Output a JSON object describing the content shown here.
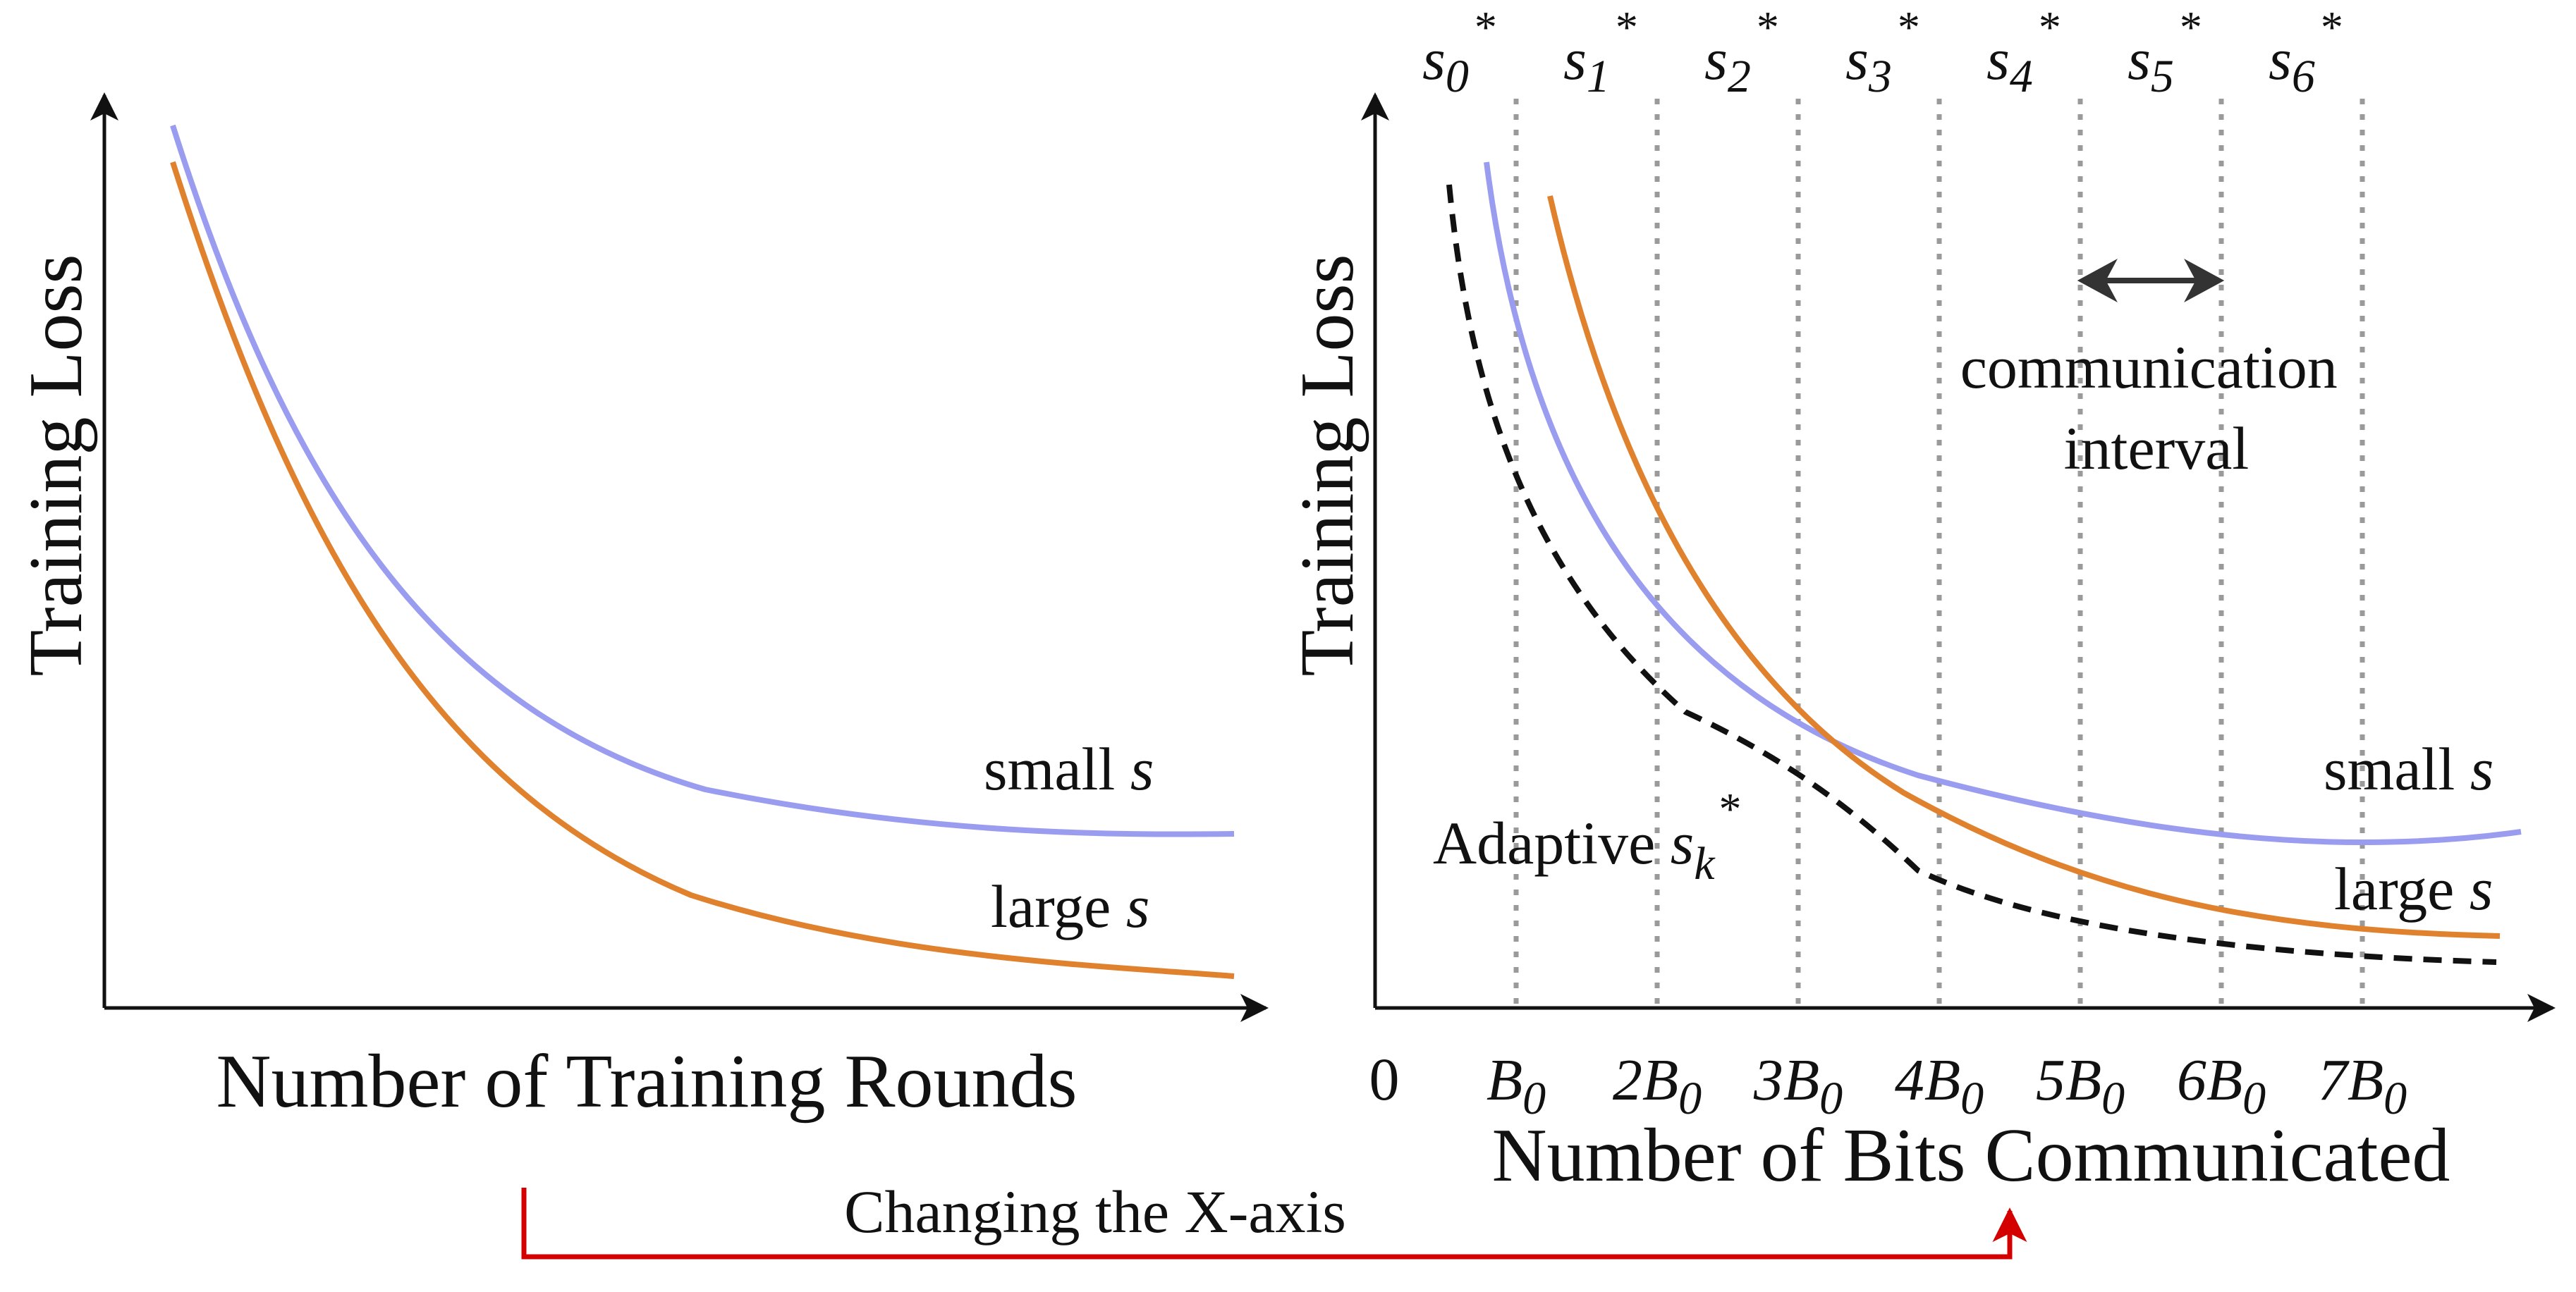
{
  "colors": {
    "small_s": "#9a9cf0",
    "large_s": "#e0812e",
    "adaptive": "#111111",
    "gridline": "#9a9a9a",
    "arrow_red": "#d40000",
    "interval_arrow": "#333333"
  },
  "left_panel": {
    "ylabel": "Training Loss",
    "xlabel": "Number of Training Rounds",
    "small_label_text": "small ",
    "small_label_var": "s",
    "large_label_text": "large ",
    "large_label_var": "s"
  },
  "right_panel": {
    "ylabel": "Training Loss",
    "xlabel": "Number of Bits Communicated",
    "origin_label": "0",
    "ticks": [
      {
        "coef": "",
        "base": "B",
        "sub": "0"
      },
      {
        "coef": "2",
        "base": "B",
        "sub": "0"
      },
      {
        "coef": "3",
        "base": "B",
        "sub": "0"
      },
      {
        "coef": "4",
        "base": "B",
        "sub": "0"
      },
      {
        "coef": "5",
        "base": "B",
        "sub": "0"
      },
      {
        "coef": "6",
        "base": "B",
        "sub": "0"
      },
      {
        "coef": "7",
        "base": "B",
        "sub": "0"
      }
    ],
    "top_labels": [
      {
        "base": "s",
        "sub": "0",
        "sup": "*"
      },
      {
        "base": "s",
        "sub": "1",
        "sup": "*"
      },
      {
        "base": "s",
        "sub": "2",
        "sup": "*"
      },
      {
        "base": "s",
        "sub": "3",
        "sup": "*"
      },
      {
        "base": "s",
        "sub": "4",
        "sup": "*"
      },
      {
        "base": "s",
        "sub": "5",
        "sup": "*"
      },
      {
        "base": "s",
        "sub": "6",
        "sup": "*"
      }
    ],
    "interval_line1": "communication",
    "interval_line2": "interval",
    "small_label_text": "small ",
    "small_label_var": "s",
    "large_label_text": "large ",
    "large_label_var": "s",
    "adaptive_text": "Adaptive ",
    "adaptive_base": "s",
    "adaptive_sub": "k",
    "adaptive_sup": "*"
  },
  "bottom_arrow_label": "Changing the X-axis"
}
